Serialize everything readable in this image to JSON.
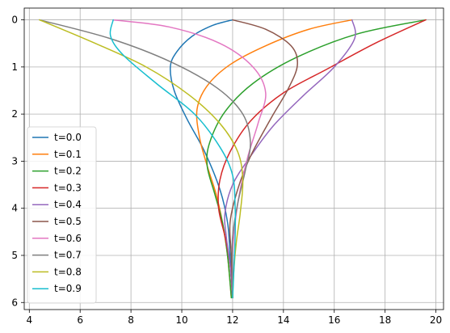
{
  "chart_data": {
    "type": "line",
    "title": "",
    "xlabel": "",
    "ylabel": "",
    "xlim": [
      3.8,
      20.3
    ],
    "ylim": [
      6.15,
      -0.25
    ],
    "y_inverted": true,
    "grid": true,
    "legend_placement": "lower-left",
    "x_ticks": [
      "4",
      "6",
      "8",
      "10",
      "12",
      "14",
      "16",
      "18",
      "20"
    ],
    "y_ticks": [
      "0",
      "1",
      "2",
      "3",
      "4",
      "5",
      "6"
    ],
    "series": [
      {
        "name": "t=0.0",
        "color": "#1f77b4",
        "points": [
          [
            12.0,
            0.0
          ],
          [
            11.2,
            0.12
          ],
          [
            10.4,
            0.35
          ],
          [
            9.8,
            0.68
          ],
          [
            9.55,
            1.0
          ],
          [
            9.7,
            1.5
          ],
          [
            10.2,
            2.1
          ],
          [
            10.9,
            2.8
          ],
          [
            11.5,
            3.6
          ],
          [
            11.8,
            4.3
          ],
          [
            11.9,
            5.0
          ],
          [
            11.95,
            5.5
          ],
          [
            12.0,
            5.9
          ]
        ]
      },
      {
        "name": "t=0.1",
        "color": "#ff7f0e",
        "points": [
          [
            16.7,
            0.0
          ],
          [
            15.0,
            0.2
          ],
          [
            13.3,
            0.55
          ],
          [
            11.9,
            0.95
          ],
          [
            11.0,
            1.4
          ],
          [
            10.6,
            1.9
          ],
          [
            10.7,
            2.5
          ],
          [
            11.0,
            3.1
          ],
          [
            11.35,
            3.7
          ],
          [
            11.6,
            4.3
          ],
          [
            11.8,
            5.0
          ],
          [
            11.95,
            5.9
          ]
        ]
      },
      {
        "name": "t=0.2",
        "color": "#2ca02c",
        "points": [
          [
            19.6,
            0.0
          ],
          [
            16.9,
            0.3
          ],
          [
            14.5,
            0.8
          ],
          [
            12.8,
            1.35
          ],
          [
            11.7,
            1.95
          ],
          [
            11.1,
            2.6
          ],
          [
            11.0,
            3.1
          ],
          [
            11.3,
            3.7
          ],
          [
            11.6,
            4.3
          ],
          [
            11.8,
            5.0
          ],
          [
            11.95,
            5.9
          ]
        ]
      },
      {
        "name": "t=0.3",
        "color": "#d62728",
        "points": [
          [
            19.6,
            0.0
          ],
          [
            17.6,
            0.5
          ],
          [
            15.7,
            1.05
          ],
          [
            14.0,
            1.55
          ],
          [
            12.7,
            2.15
          ],
          [
            11.9,
            2.8
          ],
          [
            11.5,
            3.4
          ],
          [
            11.45,
            4.0
          ],
          [
            11.7,
            4.6
          ],
          [
            11.9,
            5.2
          ],
          [
            12.0,
            5.9
          ]
        ]
      },
      {
        "name": "t=0.4",
        "color": "#9467bd",
        "points": [
          [
            16.7,
            0.0
          ],
          [
            16.8,
            0.4
          ],
          [
            16.0,
            1.0
          ],
          [
            14.8,
            1.6
          ],
          [
            13.6,
            2.25
          ],
          [
            12.7,
            2.9
          ],
          [
            12.0,
            3.5
          ],
          [
            11.7,
            4.1
          ],
          [
            11.75,
            4.6
          ],
          [
            11.9,
            5.2
          ],
          [
            12.0,
            5.9
          ]
        ]
      },
      {
        "name": "t=0.5",
        "color": "#8c564b",
        "points": [
          [
            12.0,
            0.0
          ],
          [
            13.3,
            0.2
          ],
          [
            14.3,
            0.55
          ],
          [
            14.55,
            0.95
          ],
          [
            14.2,
            1.45
          ],
          [
            13.5,
            2.1
          ],
          [
            12.7,
            2.9
          ],
          [
            12.2,
            3.6
          ],
          [
            11.9,
            4.3
          ],
          [
            11.95,
            5.0
          ],
          [
            12.0,
            5.9
          ]
        ]
      },
      {
        "name": "t=0.6",
        "color": "#e377c2",
        "points": [
          [
            7.3,
            0.0
          ],
          [
            9.5,
            0.15
          ],
          [
            11.5,
            0.5
          ],
          [
            12.8,
            1.0
          ],
          [
            13.3,
            1.55
          ],
          [
            13.0,
            2.2
          ],
          [
            12.6,
            2.9
          ],
          [
            12.3,
            3.6
          ],
          [
            12.1,
            4.3
          ],
          [
            12.0,
            5.0
          ],
          [
            12.0,
            5.9
          ]
        ]
      },
      {
        "name": "t=0.7",
        "color": "#7f7f7f",
        "points": [
          [
            4.4,
            0.0
          ],
          [
            7.2,
            0.4
          ],
          [
            9.6,
            0.9
          ],
          [
            11.4,
            1.45
          ],
          [
            12.4,
            2.0
          ],
          [
            12.7,
            2.6
          ],
          [
            12.5,
            3.2
          ],
          [
            12.2,
            3.9
          ],
          [
            12.0,
            4.6
          ],
          [
            12.0,
            5.2
          ],
          [
            12.0,
            5.9
          ]
        ]
      },
      {
        "name": "t=0.8",
        "color": "#bcbd22",
        "points": [
          [
            4.4,
            0.0
          ],
          [
            6.6,
            0.5
          ],
          [
            8.6,
            1.0
          ],
          [
            10.3,
            1.6
          ],
          [
            11.5,
            2.2
          ],
          [
            12.2,
            2.8
          ],
          [
            12.4,
            3.4
          ],
          [
            12.3,
            4.1
          ],
          [
            12.15,
            4.7
          ],
          [
            12.05,
            5.3
          ],
          [
            12.0,
            5.9
          ]
        ]
      },
      {
        "name": "t=0.9",
        "color": "#17becf",
        "points": [
          [
            7.3,
            0.0
          ],
          [
            7.2,
            0.35
          ],
          [
            7.7,
            0.75
          ],
          [
            9.0,
            1.35
          ],
          [
            10.5,
            2.0
          ],
          [
            11.5,
            2.7
          ],
          [
            12.0,
            3.3
          ],
          [
            12.1,
            4.0
          ],
          [
            12.1,
            4.6
          ],
          [
            12.05,
            5.3
          ],
          [
            12.0,
            5.9
          ]
        ]
      }
    ]
  }
}
